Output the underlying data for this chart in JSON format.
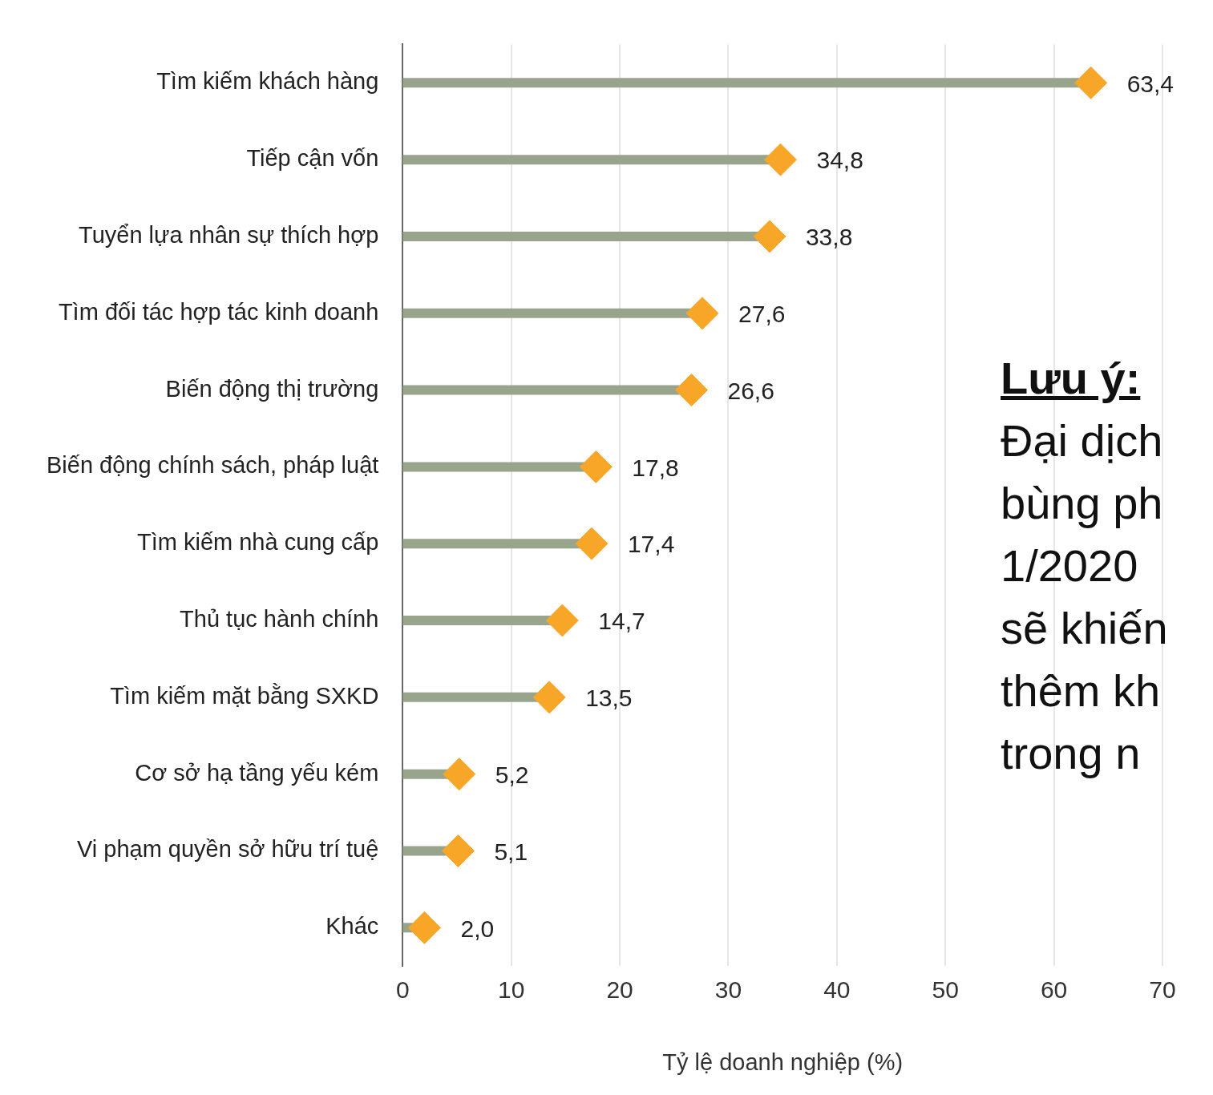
{
  "chart_data": {
    "type": "lollipop",
    "orientation": "horizontal",
    "categories": [
      "Tìm kiếm khách hàng",
      "Tiếp cận vốn",
      "Tuyển lựa nhân sự thích hợp",
      "Tìm đối tác hợp tác kinh doanh",
      "Biến động thị trường",
      "Biến động chính sách, pháp luật",
      "Tìm kiếm nhà cung cấp",
      "Thủ tục hành chính",
      "Tìm kiếm mặt bằng SXKD",
      "Cơ sở hạ tầng yếu kém",
      "Vi phạm quyền sở hữu trí tuệ",
      "Khác"
    ],
    "values": [
      63.4,
      34.8,
      33.8,
      27.6,
      26.6,
      17.8,
      17.4,
      14.7,
      13.5,
      5.2,
      5.1,
      2.0
    ],
    "value_labels": [
      "63,4",
      "34,8",
      "33,8",
      "27,6",
      "26,6",
      "17,8",
      "17,4",
      "14,7",
      "13,5",
      "5,2",
      "5,1",
      "2,0"
    ],
    "color": "#f8a628",
    "marker": "diamond",
    "xlim": [
      0,
      70
    ],
    "xticks": [
      0,
      10,
      20,
      30,
      40,
      50,
      60,
      70
    ],
    "xlabel": "Tỷ lệ doanh nghiệp (%)",
    "grid": "x",
    "legend": false,
    "annotations": [
      "Lưu ý:",
      "Đại dịch",
      "bùng ph",
      "1/2020",
      "sẽ khiến",
      "thêm kh",
      "trong n"
    ]
  }
}
